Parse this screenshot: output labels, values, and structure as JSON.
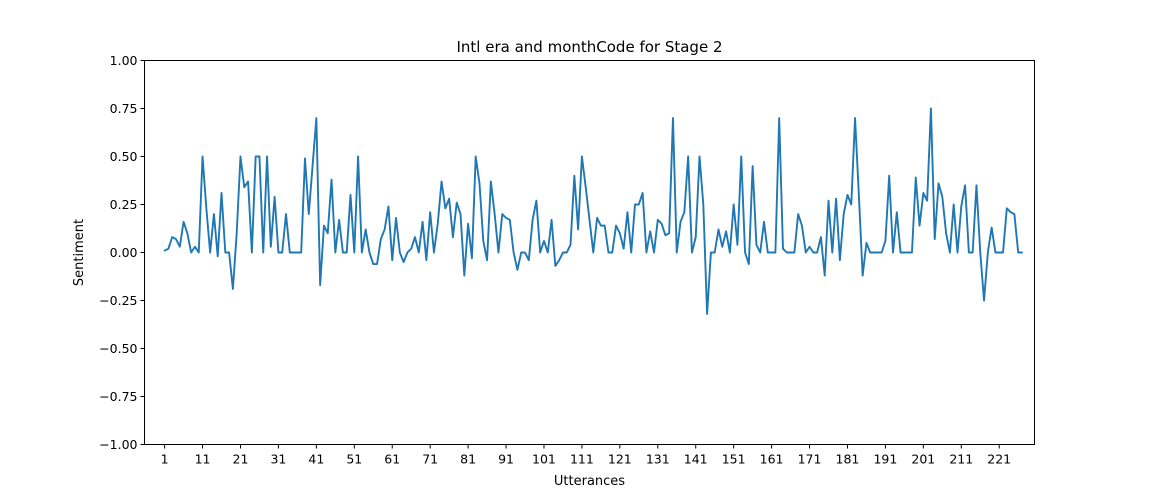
{
  "chart_data": {
    "type": "line",
    "title": "Intl era and monthCode for Stage 2",
    "xlabel": "Utterances",
    "ylabel": "Sentiment",
    "xlim": [
      -4.3,
      230.3
    ],
    "ylim": [
      -1.0,
      1.0
    ],
    "x_ticks": [
      1,
      11,
      21,
      31,
      41,
      51,
      61,
      71,
      81,
      91,
      101,
      111,
      121,
      131,
      141,
      151,
      161,
      171,
      181,
      191,
      201,
      211,
      221
    ],
    "y_ticks": [
      -1.0,
      -0.75,
      -0.5,
      -0.25,
      0.0,
      0.25,
      0.5,
      0.75,
      1.0
    ],
    "y_tick_labels": [
      "−1.00",
      "−0.75",
      "−0.50",
      "−0.25",
      "0.00",
      "0.25",
      "0.50",
      "0.75",
      "1.00"
    ],
    "grid": false,
    "colors": {
      "series": "#1f77b4"
    },
    "series": [
      {
        "x_start": 1,
        "values": [
          0.01,
          0.02,
          0.08,
          0.07,
          0.03,
          0.16,
          0.1,
          0.0,
          0.03,
          0.0,
          0.5,
          0.23,
          0.0,
          0.2,
          -0.02,
          0.31,
          0.0,
          0.0,
          -0.19,
          0.1,
          0.5,
          0.34,
          0.37,
          0.0,
          0.5,
          0.5,
          0.0,
          0.5,
          0.03,
          0.29,
          0.0,
          0.0,
          0.2,
          0.0,
          0.0,
          0.0,
          0.0,
          0.49,
          0.2,
          0.45,
          0.7,
          -0.17,
          0.14,
          0.1,
          0.38,
          0.0,
          0.17,
          0.0,
          0.0,
          0.3,
          0.0,
          0.5,
          0.0,
          0.12,
          0.0,
          -0.06,
          -0.06,
          0.07,
          0.12,
          0.24,
          -0.04,
          0.18,
          0.0,
          -0.05,
          0.0,
          0.02,
          0.08,
          0.0,
          0.16,
          -0.04,
          0.21,
          0.0,
          0.15,
          0.37,
          0.23,
          0.28,
          0.08,
          0.26,
          0.2,
          -0.12,
          0.15,
          -0.03,
          0.5,
          0.36,
          0.06,
          -0.04,
          0.37,
          0.2,
          0.0,
          0.2,
          0.18,
          0.17,
          0.0,
          -0.09,
          0.0,
          0.0,
          -0.04,
          0.17,
          0.27,
          0.0,
          0.06,
          0.0,
          0.17,
          -0.07,
          -0.04,
          0.0,
          0.0,
          0.04,
          0.4,
          0.12,
          0.5,
          0.34,
          0.17,
          0.0,
          0.18,
          0.14,
          0.14,
          0.0,
          0.0,
          0.14,
          0.1,
          0.02,
          0.21,
          0.0,
          0.25,
          0.25,
          0.31,
          0.0,
          0.11,
          0.0,
          0.17,
          0.15,
          0.09,
          0.1,
          0.7,
          0.0,
          0.16,
          0.21,
          0.5,
          0.0,
          0.08,
          0.5,
          0.25,
          -0.32,
          0.0,
          0.0,
          0.12,
          0.03,
          0.11,
          0.0,
          0.25,
          0.04,
          0.5,
          0.0,
          -0.06,
          0.45,
          0.04,
          0.0,
          0.16,
          0.0,
          0.0,
          0.0,
          0.7,
          0.02,
          0.0,
          0.0,
          0.0,
          0.2,
          0.14,
          0.0,
          0.03,
          0.0,
          0.0,
          0.08,
          -0.12,
          0.27,
          0.0,
          0.28,
          -0.04,
          0.2,
          0.3,
          0.25,
          0.7,
          0.3,
          -0.12,
          0.05,
          0.0,
          0.0,
          0.0,
          0.0,
          0.06,
          0.4,
          0.0,
          0.21,
          0.0,
          0.0,
          0.0,
          0.0,
          0.39,
          0.14,
          0.31,
          0.27,
          0.75,
          0.07,
          0.36,
          0.29,
          0.1,
          0.0,
          0.25,
          0.0,
          0.24,
          0.35,
          0.0,
          0.0,
          0.35,
          0.0,
          -0.25,
          0.0,
          0.13,
          0.0,
          0.0,
          0.0,
          0.23,
          0.21,
          0.2,
          0.0,
          0.0
        ]
      }
    ]
  }
}
